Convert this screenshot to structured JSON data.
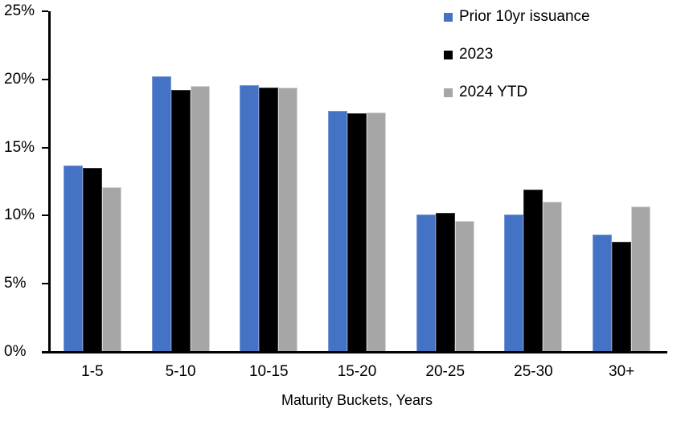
{
  "chart_data": {
    "type": "bar",
    "title": "",
    "xlabel": "Maturity Buckets, Years",
    "ylabel": "",
    "ylim": [
      0,
      25
    ],
    "ytick_labels": [
      "25%",
      "20%",
      "15%",
      "10%",
      "5%",
      "0%"
    ],
    "grid": false,
    "legend_position": "top-right",
    "categories": [
      "1-5",
      "5-10",
      "10-15",
      "15-20",
      "20-25",
      "25-30",
      "30+"
    ],
    "series": [
      {
        "name": "Prior 10yr issuance",
        "color": "#4472C4",
        "border_color": "#7C9AD6",
        "values": [
          13.7,
          20.2,
          19.6,
          17.7,
          10.1,
          10.1,
          8.6
        ]
      },
      {
        "name": "2023",
        "color": "#000000",
        "border_color": "#3A3A3A",
        "values": [
          13.5,
          19.2,
          19.4,
          17.5,
          10.2,
          11.9,
          8.1
        ]
      },
      {
        "name": "2024 YTD",
        "color": "#A6A6A6",
        "border_color": "#D6D6D6",
        "values": [
          12.1,
          19.5,
          19.4,
          17.6,
          9.6,
          11.0,
          10.7
        ]
      }
    ]
  }
}
